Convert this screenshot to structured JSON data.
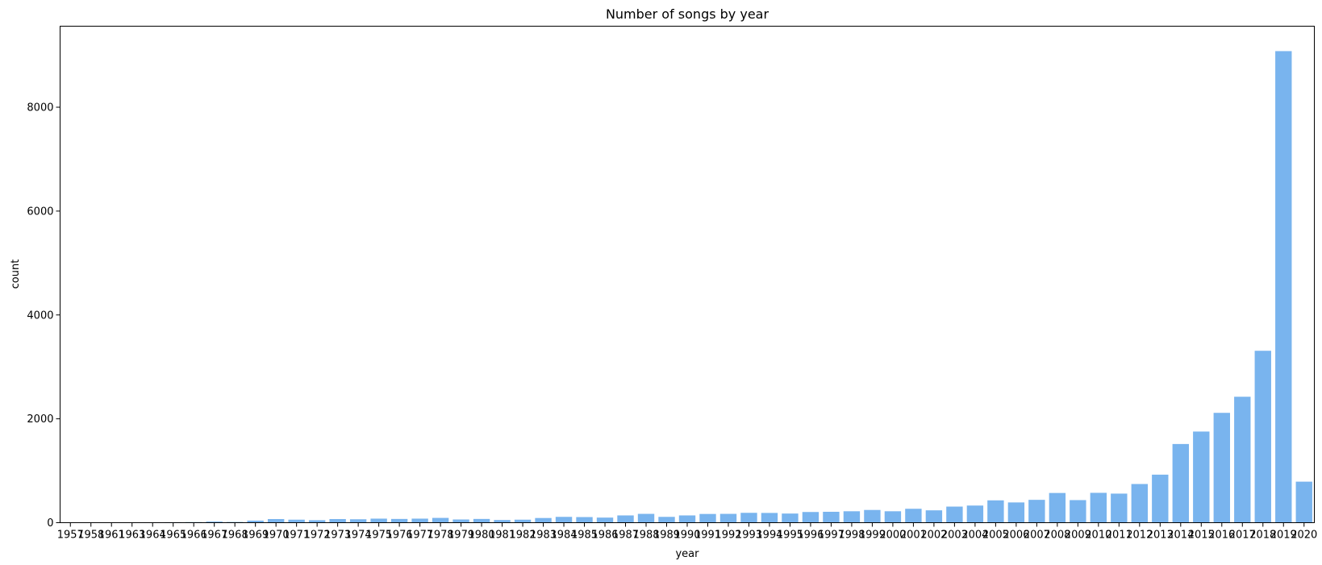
{
  "chart_data": {
    "type": "bar",
    "title": "Number of songs by year",
    "xlabel": "year",
    "ylabel": "count",
    "ylim": [
      0,
      9560
    ],
    "yticks": [
      0,
      2000,
      4000,
      6000,
      8000
    ],
    "grid": false,
    "bar_color": "#79b4ee",
    "categories": [
      "1957",
      "1958",
      "1961",
      "1963",
      "1964",
      "1965",
      "1966",
      "1967",
      "1968",
      "1969",
      "1970",
      "1971",
      "1972",
      "1973",
      "1974",
      "1975",
      "1976",
      "1977",
      "1978",
      "1979",
      "1980",
      "1981",
      "1982",
      "1983",
      "1984",
      "1985",
      "1986",
      "1987",
      "1988",
      "1989",
      "1990",
      "1991",
      "1992",
      "1993",
      "1994",
      "1995",
      "1996",
      "1997",
      "1998",
      "1999",
      "2000",
      "2001",
      "2002",
      "2003",
      "2004",
      "2005",
      "2006",
      "2007",
      "2008",
      "2009",
      "2010",
      "2011",
      "2012",
      "2013",
      "2014",
      "2015",
      "2016",
      "2017",
      "2018",
      "2019",
      "2020"
    ],
    "values": [
      2,
      3,
      3,
      6,
      8,
      10,
      12,
      22,
      14,
      40,
      70,
      58,
      48,
      70,
      66,
      78,
      72,
      78,
      92,
      62,
      72,
      52,
      58,
      90,
      112,
      108,
      98,
      140,
      170,
      112,
      140,
      168,
      170,
      190,
      188,
      176,
      206,
      210,
      220,
      245,
      220,
      268,
      238,
      310,
      330,
      430,
      390,
      440,
      572,
      435,
      575,
      560,
      745,
      925,
      1515,
      1755,
      2115,
      2425,
      3310,
      9080,
      790
    ]
  }
}
